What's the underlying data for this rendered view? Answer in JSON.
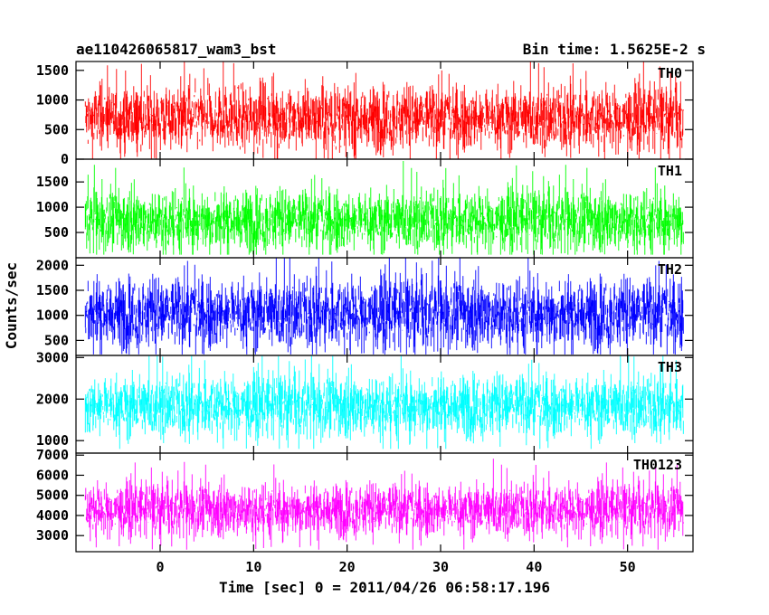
{
  "header": {
    "title": "ae110426065817_wam3_bst",
    "bin_time": "Bin time: 1.5625E-2 s"
  },
  "axes": {
    "ylabel": "Counts/sec",
    "xlabel": "Time [sec] 0 = 2011/04/26 06:58:17.196"
  },
  "chart_data": {
    "type": "line",
    "title": "ae110426065817_wam3_bst",
    "subtitle": "Bin time: 1.5625E-2 s",
    "xlabel": "Time [sec] 0 = 2011/04/26 06:58:17.196",
    "ylabel": "Counts/sec",
    "bin_time_s": 0.015625,
    "xlim": [
      -9,
      57
    ],
    "x_ticks": [
      0,
      10,
      20,
      30,
      40,
      50
    ],
    "x_tick_labels": [
      "0",
      "10",
      "20",
      "30",
      "40",
      "50"
    ],
    "data_range": [
      -8,
      56
    ],
    "panels": [
      {
        "name": "TH0",
        "color": "#ff0000",
        "ylim": [
          0,
          1650
        ],
        "ticks": [
          0,
          500,
          1000,
          1500
        ],
        "tick_labels": [
          "0",
          "500",
          "1000",
          "1500"
        ],
        "mean": 700,
        "spread": 270,
        "peak": 1650,
        "floor": 0
      },
      {
        "name": "TH1",
        "color": "#00ff00",
        "ylim": [
          0,
          1950
        ],
        "ticks": [
          500,
          1000,
          1500
        ],
        "tick_labels": [
          "500",
          "1000",
          "1500"
        ],
        "mean": 750,
        "spread": 300,
        "peak": 1800,
        "floor": 60
      },
      {
        "name": "TH2",
        "color": "#0000ff",
        "ylim": [
          200,
          2150
        ],
        "ticks": [
          500,
          1000,
          1500,
          2000
        ],
        "tick_labels": [
          "500",
          "1000",
          "1500",
          "2000"
        ],
        "mean": 1050,
        "spread": 350,
        "peak": 2150,
        "floor": 220
      },
      {
        "name": "TH3",
        "color": "#00ffff",
        "ylim": [
          700,
          3050
        ],
        "ticks": [
          1000,
          2000,
          3000
        ],
        "tick_labels": [
          "1000",
          "2000",
          "3000"
        ],
        "mean": 1850,
        "spread": 370,
        "peak": 3000,
        "floor": 800
      },
      {
        "name": "TH0123",
        "color": "#ff00ff",
        "ylim": [
          2200,
          7100
        ],
        "ticks": [
          3000,
          4000,
          5000,
          6000,
          7000
        ],
        "tick_labels": [
          "3000",
          "4000",
          "5000",
          "6000",
          "7000"
        ],
        "mean": 4300,
        "spread": 650,
        "peak": 7100,
        "floor": 2300
      }
    ]
  }
}
